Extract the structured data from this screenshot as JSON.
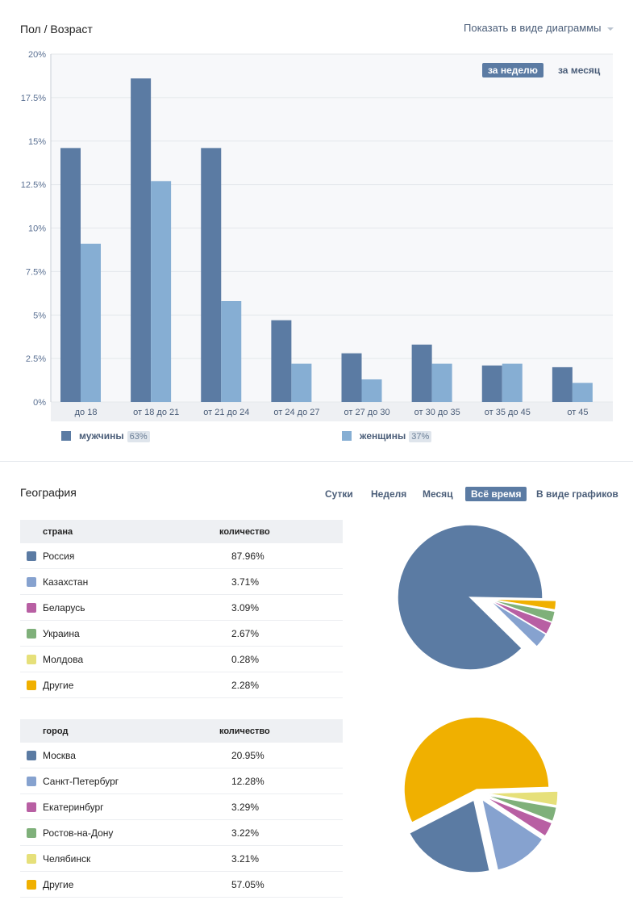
{
  "gender_age": {
    "title": "Пол / Возраст",
    "view_toggle": "Показать в виде диаграммы",
    "period_buttons": {
      "week": "за неделю",
      "month": "за месяц"
    },
    "legend": [
      {
        "label": "мужчины",
        "pct": "63%",
        "color": "#5b7ba3"
      },
      {
        "label": "женщины",
        "pct": "37%",
        "color": "#86aed3"
      }
    ]
  },
  "chart_data": {
    "type": "bar",
    "categories": [
      "до 18",
      "от 18 до 21",
      "от 21 до 24",
      "от 24 до 27",
      "от 27 до 30",
      "от 30 до 35",
      "от 35 до 45",
      "от 45"
    ],
    "series": [
      {
        "name": "мужчины",
        "values": [
          14.6,
          18.6,
          14.6,
          4.7,
          2.8,
          3.3,
          2.1,
          2.0
        ],
        "color": "#5b7ba3"
      },
      {
        "name": "женщины",
        "values": [
          9.1,
          12.7,
          5.8,
          2.2,
          1.3,
          2.2,
          2.2,
          1.1
        ],
        "color": "#86aed3"
      }
    ],
    "yticks": [
      "0%",
      "2.5%",
      "5%",
      "7.5%",
      "10%",
      "12.5%",
      "15%",
      "17.5%",
      "20%"
    ],
    "ylim": [
      0,
      20
    ],
    "grid": true
  },
  "geography": {
    "title": "География",
    "timeframes": [
      "Сутки",
      "Неделя",
      "Месяц",
      "Всё время"
    ],
    "active_timeframe": "Всё время",
    "graph_link": "В виде графиков",
    "countries": {
      "col1": "страна",
      "col2": "количество",
      "rows": [
        {
          "name": "Россия",
          "value": "87.96%",
          "color": "#5b7ba3"
        },
        {
          "name": "Казахстан",
          "value": "3.71%",
          "color": "#86a2cf"
        },
        {
          "name": "Беларусь",
          "value": "3.09%",
          "color": "#b85fa3"
        },
        {
          "name": "Украина",
          "value": "2.67%",
          "color": "#7fb07a"
        },
        {
          "name": "Молдова",
          "value": "0.28%",
          "color": "#e6e07a"
        },
        {
          "name": "Другие",
          "value": "2.28%",
          "color": "#f0b000"
        }
      ]
    },
    "cities": {
      "col1": "город",
      "col2": "количество",
      "rows": [
        {
          "name": "Москва",
          "value": "20.95%",
          "color": "#5b7ba3"
        },
        {
          "name": "Санкт-Петербург",
          "value": "12.28%",
          "color": "#86a2cf"
        },
        {
          "name": "Екатеринбург",
          "value": "3.29%",
          "color": "#b85fa3"
        },
        {
          "name": "Ростов-на-Дону",
          "value": "3.22%",
          "color": "#7fb07a"
        },
        {
          "name": "Челябинск",
          "value": "3.21%",
          "color": "#e6e07a"
        },
        {
          "name": "Другие",
          "value": "57.05%",
          "color": "#f0b000"
        }
      ]
    }
  }
}
